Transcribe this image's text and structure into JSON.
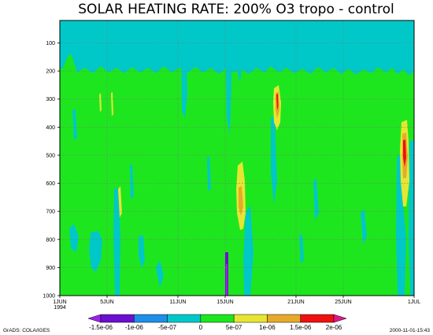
{
  "chart_data": {
    "type": "heatmap",
    "title": "SOLAR HEATING RATE: 200% O3 tropo - control",
    "xlabel": "",
    "ylabel": "",
    "x_ticks": [
      {
        "label": "1JUN",
        "day": 1
      },
      {
        "label": "5JUN",
        "day": 5
      },
      {
        "label": "11JUN",
        "day": 11
      },
      {
        "label": "15JUN",
        "day": 15
      },
      {
        "label": "21JUN",
        "day": 21
      },
      {
        "label": "25JUN",
        "day": 25
      },
      {
        "label": "1JUL",
        "day": 31
      }
    ],
    "x_year_label": "1994",
    "xlim": [
      1,
      31
    ],
    "y_ticks": [
      100,
      200,
      300,
      400,
      500,
      600,
      700,
      800,
      900,
      1000
    ],
    "ylim": [
      1000,
      20
    ],
    "grid": true,
    "colorbar": {
      "levels": [
        "-1.5e-06",
        "-1e-06",
        "-5e-07",
        "0",
        "5e-07",
        "1e-06",
        "1.5e-06",
        "2e-06"
      ],
      "colors": [
        "#a020f0",
        "#6a10d0",
        "#1e8fe8",
        "#00c8c8",
        "#1ee61e",
        "#e6e632",
        "#e6aa2a",
        "#f01010",
        "#e0188c"
      ]
    },
    "features": [
      {
        "kind": "upper-band",
        "value": "-5e-07 to 0",
        "p_range": [
          20,
          200
        ]
      },
      {
        "kind": "background",
        "value": "0 to 5e-07"
      },
      {
        "kind": "maximum",
        "day": 16.2,
        "p_range": [
          540,
          780
        ],
        "value": "5e-07 to 1.5e-06"
      },
      {
        "kind": "maximum",
        "day": 19.8,
        "p_range": [
          260,
          420
        ],
        "value": "1e-06 to 2e-06"
      },
      {
        "kind": "maximum",
        "day": 30.6,
        "p_range": [
          400,
          740
        ],
        "value": "1e-06 to 2e-06"
      },
      {
        "kind": "minimum",
        "day": 14.9,
        "p_range": [
          850,
          1000
        ],
        "value": "-1.5e-06 to -1e-06"
      }
    ]
  },
  "footer": {
    "left": "GrADS: COLA/IGES",
    "right": "2000-11-01-15:43"
  }
}
